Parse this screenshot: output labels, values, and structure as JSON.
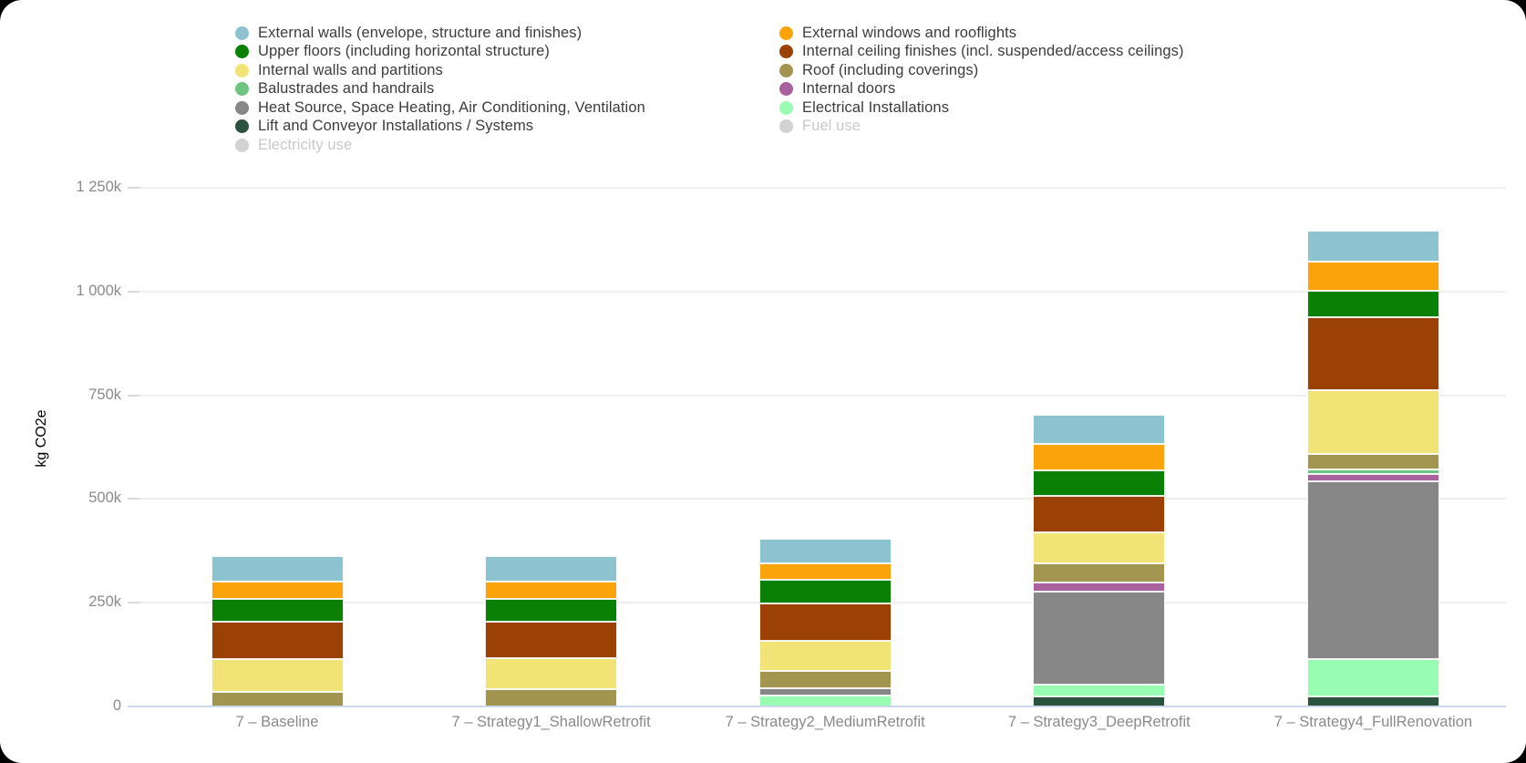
{
  "page": {
    "background": "#000000",
    "canvas_background": "#ffffff"
  },
  "colors": {
    "axis_line": "#ccd8ec",
    "gridline": "#efefef",
    "tick_dash": "#dadada",
    "tick_label_text": "#8a8a8a",
    "axis_title_text": "#6f6f6f",
    "legend_text": "#3c3c3c",
    "legend_text_disabled": "#c9c9c9",
    "legend_dot_disabled": "#d2d2d2"
  },
  "chart_data": {
    "type": "bar",
    "stacked": true,
    "title": "",
    "xlabel": "",
    "ylabel": "kg CO2e",
    "values_unit": "thousand kg CO2e",
    "grid": true,
    "legend_position": "top",
    "ylim_k": [
      0,
      1250
    ],
    "yticks_k": [
      0,
      250,
      500,
      750,
      1000,
      1250
    ],
    "ytick_labels": [
      "0",
      "250k",
      "500k",
      "750k",
      "1 000k",
      "1 250k"
    ],
    "categories": [
      "7 – Baseline",
      "7 – Strategy1_ShallowRetrofit",
      "7 – Strategy2_MediumRetrofit",
      "7 – Strategy3_DeepRetrofit",
      "7 – Strategy4_FullRenovation"
    ],
    "series": [
      {
        "key": "external-walls",
        "name": "External walls (envelope, structure and finishes)",
        "color": "#8dc3ce",
        "legend_column": 1,
        "disabled": false,
        "values_k": [
          62,
          60,
          60,
          70,
          75
        ]
      },
      {
        "key": "external-windows",
        "name": "External windows and rooflights",
        "color": "#fba30b",
        "legend_column": 2,
        "disabled": false,
        "values_k": [
          41,
          42,
          40,
          64,
          71
        ]
      },
      {
        "key": "upper-floors",
        "name": "Upper floors (including horizontal structure)",
        "color": "#0a8005",
        "legend_column": 1,
        "disabled": false,
        "values_k": [
          55,
          56,
          57,
          60,
          62
        ]
      },
      {
        "key": "internal-ceiling-finishes",
        "name": "Internal ceiling finishes (incl. suspended/access ceilings)",
        "color": "#9b4104",
        "legend_column": 2,
        "disabled": false,
        "values_k": [
          91,
          87,
          90,
          89,
          177
        ]
      },
      {
        "key": "internal-walls",
        "name": "Internal walls and partitions",
        "color": "#f1e376",
        "legend_column": 1,
        "disabled": false,
        "values_k": [
          80,
          76,
          73,
          75,
          154
        ]
      },
      {
        "key": "roof",
        "name": "Roof (including coverings)",
        "color": "#a29550",
        "legend_column": 2,
        "disabled": false,
        "values_k": [
          34,
          41,
          41,
          46,
          38
        ]
      },
      {
        "key": "balustrades",
        "name": "Balustrades and handrails",
        "color": "#6ec57f",
        "legend_column": 1,
        "disabled": false,
        "values_k": [
          0,
          0,
          0,
          0,
          10
        ]
      },
      {
        "key": "internal-doors",
        "name": "Internal doors",
        "color": "#a9619e",
        "legend_column": 2,
        "disabled": false,
        "values_k": [
          0,
          0,
          0,
          22,
          18
        ]
      },
      {
        "key": "heat-source",
        "name": "Heat Source, Space Heating, Air Conditioning, Ventilation",
        "color": "#878787",
        "legend_column": 1,
        "disabled": false,
        "values_k": [
          0,
          0,
          18,
          223,
          429
        ]
      },
      {
        "key": "electrical-installations",
        "name": "Electrical Installations",
        "color": "#99fcb3",
        "legend_column": 2,
        "disabled": false,
        "values_k": [
          0,
          0,
          26,
          30,
          89
        ]
      },
      {
        "key": "lift-conveyor",
        "name": "Lift and Conveyor Installations / Systems",
        "color": "#2a523e",
        "legend_column": 1,
        "disabled": false,
        "values_k": [
          0,
          0,
          0,
          23,
          24
        ]
      },
      {
        "key": "fuel-use",
        "name": "Fuel use",
        "color": "#cccccc",
        "legend_column": 2,
        "disabled": true,
        "values_k": [
          0,
          0,
          0,
          0,
          0
        ]
      },
      {
        "key": "electricity-use",
        "name": "Electricity use",
        "color": "#d2d2d2",
        "legend_column": 1,
        "disabled": true,
        "values_k": [
          0,
          0,
          0,
          0,
          0
        ]
      }
    ],
    "stack_order_bottom_to_top": [
      "lift-conveyor",
      "electrical-installations",
      "heat-source",
      "internal-doors",
      "balustrades",
      "roof",
      "internal-walls",
      "internal-ceiling-finishes",
      "upper-floors",
      "external-windows",
      "external-walls"
    ]
  }
}
